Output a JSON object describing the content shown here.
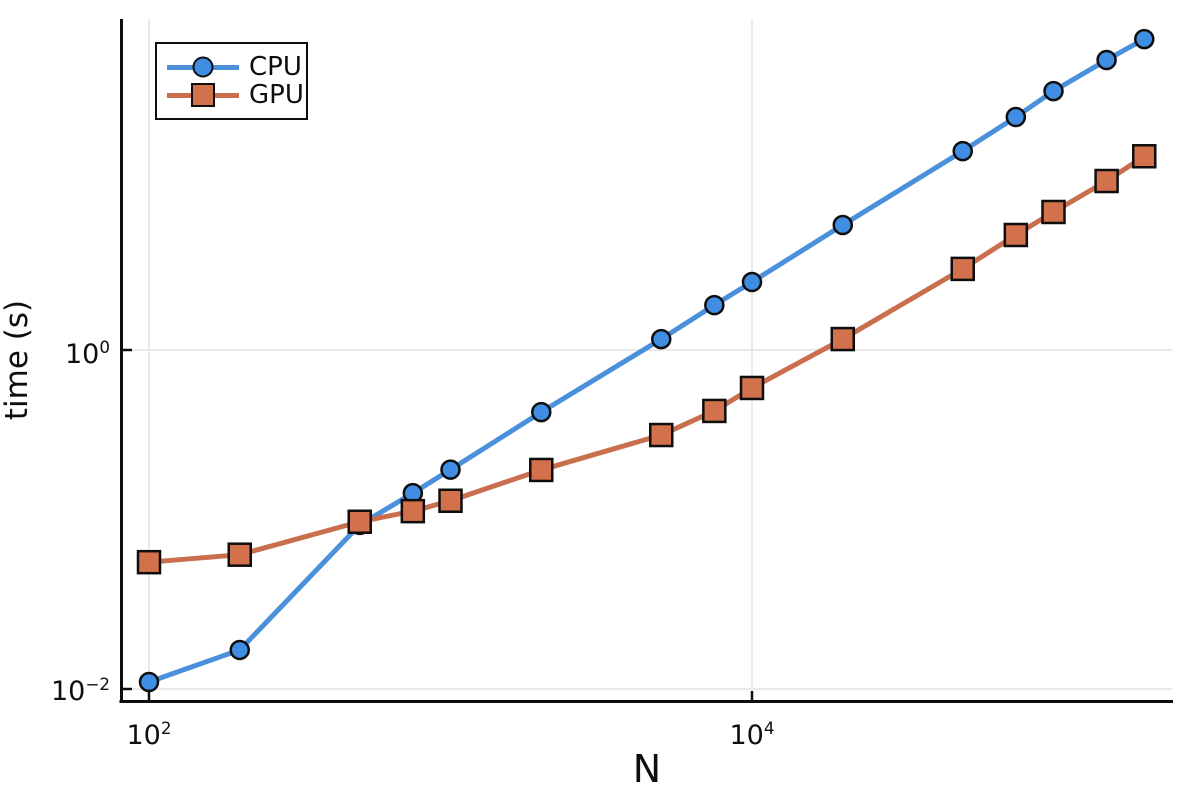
{
  "chart_data": {
    "type": "line",
    "title": "",
    "xlabel": "N",
    "ylabel": "time (s)",
    "x_scale": "log10",
    "y_scale": "log10",
    "xlim": [
      81,
      247000
    ],
    "ylim": [
      0.0085,
      90
    ],
    "grid": true,
    "x": [
      100,
      200,
      500,
      750,
      1000,
      2000,
      5000,
      7500,
      10000,
      20000,
      50000,
      75000,
      100000,
      150000,
      200000
    ],
    "series": [
      {
        "name": "CPU",
        "marker": "circle",
        "color": "#4A90DB",
        "marker_color": "#3F8EE3",
        "values": [
          0.011,
          0.017,
          0.093,
          0.143,
          0.197,
          0.43,
          1.16,
          1.84,
          2.52,
          5.46,
          14.9,
          23.7,
          33.7,
          51.4,
          68.3
        ]
      },
      {
        "name": "GPU",
        "marker": "square",
        "color": "#C96F4E",
        "marker_color": "#D2714B",
        "values": [
          0.056,
          0.062,
          0.097,
          0.112,
          0.129,
          0.196,
          0.315,
          0.437,
          0.597,
          1.16,
          3.01,
          4.77,
          6.52,
          9.93,
          13.9
        ]
      }
    ],
    "x_ticks": [
      {
        "value": 100,
        "base": "10",
        "exp": "2"
      },
      {
        "value": 10000,
        "base": "10",
        "exp": "4"
      }
    ],
    "y_ticks": [
      {
        "value": 1,
        "base": "10",
        "exp": "0"
      },
      {
        "value": 0.01,
        "base": "10",
        "exp": "−2"
      }
    ],
    "legend": {
      "position": "top-left",
      "entries": [
        "CPU",
        "GPU"
      ]
    }
  },
  "colors": {
    "background": "#ffffff",
    "grid": "#e9e9e9",
    "axis": "#0e0e0e",
    "marker_edge": "#0e0e0e",
    "cpu": "#4A90DB",
    "gpu": "#C96F4E"
  }
}
